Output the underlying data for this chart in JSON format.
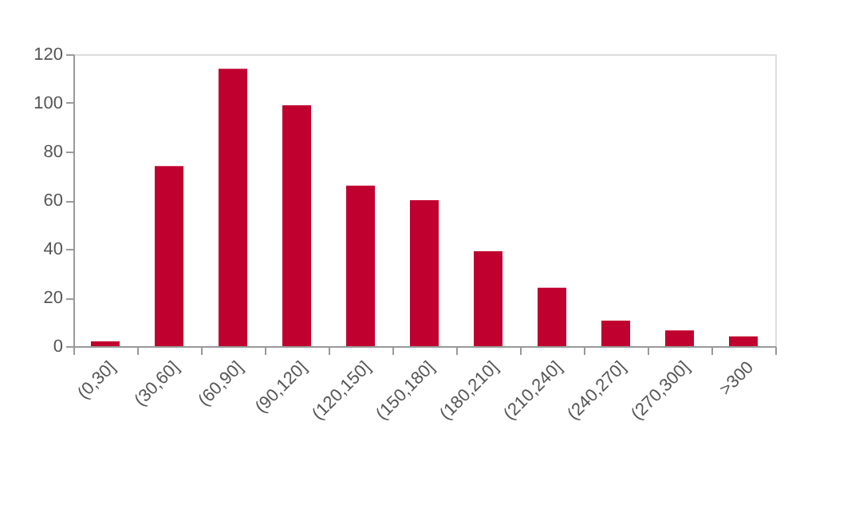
{
  "chart_data": {
    "type": "bar",
    "categories": [
      "(0,30]",
      "(30,60]",
      "(60,90]",
      "(90,120]",
      "(120,150]",
      "(150,180]",
      "(180,210]",
      "(210,240]",
      "(240,270]",
      "(270,300]",
      ">300"
    ],
    "values": [
      2,
      74,
      114,
      99,
      66,
      60,
      39,
      24,
      10.5,
      6.5,
      4
    ],
    "color": "#c0002f",
    "ylim": [
      0,
      120
    ],
    "yticks": [
      0,
      20,
      40,
      60,
      80,
      100,
      120
    ],
    "grid": false
  }
}
